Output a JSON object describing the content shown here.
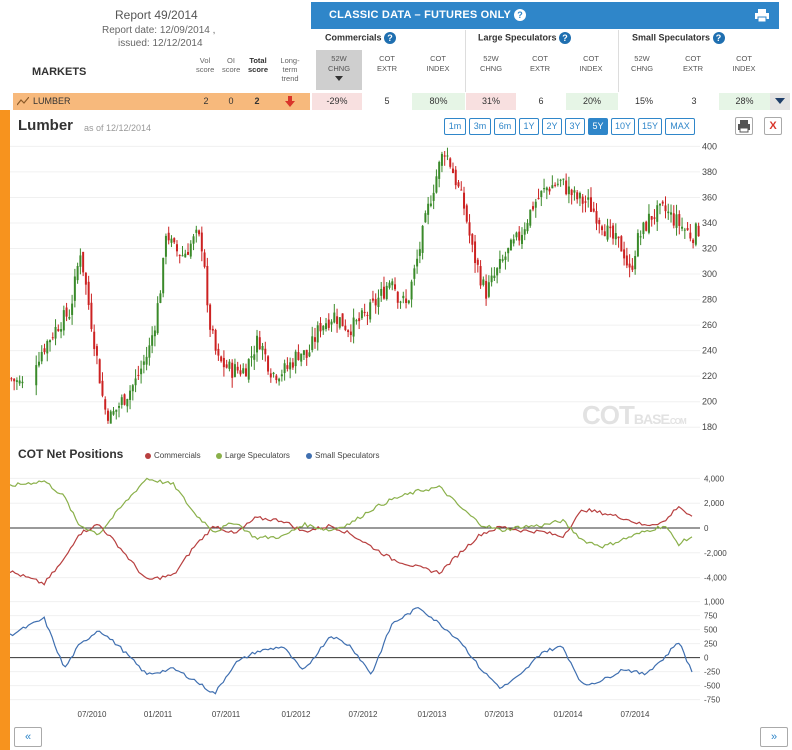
{
  "report": {
    "title": "Report 49/2014",
    "report_date": "Report date: 12/09/2014 ,",
    "issued": "issued: 12/12/2014"
  },
  "markets_label": "MARKETS",
  "score_headers": {
    "vol": "Vol score",
    "oi": "OI score",
    "total": "Total score",
    "trend": "Long-term trend"
  },
  "classic": {
    "title": "CLASSIC DATA – FUTURES ONLY",
    "help": "?"
  },
  "groups": [
    {
      "label": "Commercials"
    },
    {
      "label": "Large Speculators"
    },
    {
      "label": "Small Speculators"
    }
  ],
  "columns": [
    {
      "l1": "52W",
      "l2": "CHNG"
    },
    {
      "l1": "COT",
      "l2": "EXTR"
    },
    {
      "l1": "COT",
      "l2": "INDEX"
    },
    {
      "l1": "52W",
      "l2": "CHNG"
    },
    {
      "l1": "COT",
      "l2": "EXTR"
    },
    {
      "l1": "COT",
      "l2": "INDEX"
    },
    {
      "l1": "52W",
      "l2": "CHNG"
    },
    {
      "l1": "COT",
      "l2": "EXTR"
    },
    {
      "l1": "COT",
      "l2": "INDEX"
    }
  ],
  "market_row": {
    "name": "LUMBER",
    "vol": "2",
    "oi": "0",
    "total": "2",
    "trend_icon": "arrow-down-icon",
    "cells": [
      {
        "v": "-29%",
        "bg": "#f8e0e0"
      },
      {
        "v": "5",
        "bg": "#ffffff"
      },
      {
        "v": "80%",
        "bg": "#e6f5e6"
      },
      {
        "v": "31%",
        "bg": "#f8e0e0"
      },
      {
        "v": "6",
        "bg": "#ffffff"
      },
      {
        "v": "20%",
        "bg": "#e6f5e6"
      },
      {
        "v": "15%",
        "bg": "#ffffff"
      },
      {
        "v": "3",
        "bg": "#ffffff"
      },
      {
        "v": "28%",
        "bg": "#e6f5e6"
      }
    ]
  },
  "chart": {
    "title": "Lumber",
    "asof": "as of 12/12/2014",
    "watermark_a": "COT",
    "watermark_b": "BASE",
    "watermark_c": ".COM",
    "ranges": [
      "1m",
      "3m",
      "6m",
      "1Y",
      "2Y",
      "3Y",
      "5Y",
      "10Y",
      "15Y",
      "MAX"
    ],
    "active_range": "5Y",
    "close": "X"
  },
  "cot": {
    "title": "COT Net Positions",
    "legend": [
      "Commercials",
      "Large Speculators",
      "Small Speculators"
    ]
  },
  "colors": {
    "accent": "#2f86c9",
    "orange": "#f7931e",
    "up": "#3a8a2a",
    "down": "#cc2222",
    "comm": "#b84040",
    "large": "#8ab04a",
    "small": "#3f6fb0"
  },
  "nav": {
    "prev": "«",
    "next": "»"
  },
  "chart_data": [
    {
      "type": "candlestick",
      "title": "Lumber",
      "ylim": [
        170,
        405
      ],
      "y_ticks": [
        "400",
        "380",
        "360",
        "340",
        "320",
        "300",
        "280",
        "260",
        "240",
        "220",
        "200",
        "180"
      ],
      "x_ticks": [
        "07/2010",
        "01/2011",
        "07/2011",
        "01/2012",
        "07/2012",
        "01/2013",
        "07/2013",
        "01/2014",
        "07/2014"
      ],
      "close_path": [
        [
          0,
          218
        ],
        [
          0.02,
          212
        ],
        [
          0.03,
          228
        ],
        [
          0.05,
          245
        ],
        [
          0.07,
          262
        ],
        [
          0.085,
          270
        ],
        [
          0.095,
          300
        ],
        [
          0.1,
          320
        ],
        [
          0.11,
          285
        ],
        [
          0.125,
          232
        ],
        [
          0.135,
          195
        ],
        [
          0.145,
          188
        ],
        [
          0.16,
          200
        ],
        [
          0.18,
          215
        ],
        [
          0.2,
          240
        ],
        [
          0.21,
          265
        ],
        [
          0.22,
          300
        ],
        [
          0.225,
          335
        ],
        [
          0.235,
          320
        ],
        [
          0.25,
          315
        ],
        [
          0.27,
          330
        ],
        [
          0.28,
          320
        ],
        [
          0.285,
          270
        ],
        [
          0.3,
          232
        ],
        [
          0.32,
          225
        ],
        [
          0.34,
          225
        ],
        [
          0.36,
          250
        ],
        [
          0.37,
          235
        ],
        [
          0.38,
          222
        ],
        [
          0.4,
          225
        ],
        [
          0.42,
          240
        ],
        [
          0.43,
          235
        ],
        [
          0.45,
          260
        ],
        [
          0.47,
          268
        ],
        [
          0.49,
          258
        ],
        [
          0.5,
          260
        ],
        [
          0.52,
          270
        ],
        [
          0.54,
          285
        ],
        [
          0.555,
          300
        ],
        [
          0.56,
          285
        ],
        [
          0.575,
          275
        ],
        [
          0.59,
          310
        ],
        [
          0.6,
          335
        ],
        [
          0.61,
          360
        ],
        [
          0.62,
          380
        ],
        [
          0.63,
          398
        ],
        [
          0.64,
          385
        ],
        [
          0.66,
          350
        ],
        [
          0.67,
          320
        ],
        [
          0.69,
          285
        ],
        [
          0.7,
          295
        ],
        [
          0.72,
          315
        ],
        [
          0.74,
          330
        ],
        [
          0.76,
          355
        ],
        [
          0.78,
          368
        ],
        [
          0.8,
          372
        ],
        [
          0.82,
          360
        ],
        [
          0.84,
          355
        ],
        [
          0.86,
          340
        ],
        [
          0.87,
          330
        ],
        [
          0.89,
          320
        ],
        [
          0.9,
          300
        ],
        [
          0.91,
          325
        ],
        [
          0.93,
          345
        ],
        [
          0.95,
          350
        ],
        [
          0.97,
          340
        ],
        [
          0.99,
          330
        ],
        [
          1,
          335
        ]
      ]
    },
    {
      "type": "line",
      "title": "COT Net Positions",
      "ylim": [
        -5000,
        5000
      ],
      "y_ticks": [
        "4,000",
        "2,000",
        "0",
        "-2,000",
        "-4,000"
      ],
      "series": [
        {
          "name": "Commercials",
          "values": [
            [
              0,
              -3500
            ],
            [
              0.05,
              -4500
            ],
            [
              0.08,
              -2500
            ],
            [
              0.1,
              -500
            ],
            [
              0.13,
              300
            ],
            [
              0.16,
              -1500
            ],
            [
              0.2,
              -4200
            ],
            [
              0.24,
              -3800
            ],
            [
              0.27,
              -1500
            ],
            [
              0.3,
              200
            ],
            [
              0.33,
              -500
            ],
            [
              0.36,
              800
            ],
            [
              0.4,
              600
            ],
            [
              0.43,
              -300
            ],
            [
              0.47,
              200
            ],
            [
              0.5,
              -500
            ],
            [
              0.53,
              -1500
            ],
            [
              0.56,
              -2500
            ],
            [
              0.6,
              -3200
            ],
            [
              0.63,
              -3600
            ],
            [
              0.66,
              -2000
            ],
            [
              0.69,
              -500
            ],
            [
              0.72,
              100
            ],
            [
              0.75,
              -200
            ],
            [
              0.78,
              -300
            ],
            [
              0.81,
              -700
            ],
            [
              0.84,
              1500
            ],
            [
              0.87,
              1200
            ],
            [
              0.9,
              800
            ],
            [
              0.93,
              200
            ],
            [
              0.96,
              500
            ],
            [
              0.98,
              1800
            ],
            [
              1,
              800
            ]
          ]
        },
        {
          "name": "Large Speculators",
          "values": [
            [
              0,
              3400
            ],
            [
              0.05,
              3800
            ],
            [
              0.08,
              2500
            ],
            [
              0.1,
              300
            ],
            [
              0.13,
              -500
            ],
            [
              0.16,
              1500
            ],
            [
              0.2,
              4000
            ],
            [
              0.24,
              3500
            ],
            [
              0.27,
              1200
            ],
            [
              0.3,
              -300
            ],
            [
              0.33,
              500
            ],
            [
              0.36,
              -800
            ],
            [
              0.4,
              -700
            ],
            [
              0.43,
              300
            ],
            [
              0.47,
              -200
            ],
            [
              0.5,
              400
            ],
            [
              0.53,
              1500
            ],
            [
              0.56,
              2300
            ],
            [
              0.6,
              3000
            ],
            [
              0.63,
              3300
            ],
            [
              0.66,
              1700
            ],
            [
              0.69,
              300
            ],
            [
              0.72,
              -200
            ],
            [
              0.75,
              100
            ],
            [
              0.78,
              200
            ],
            [
              0.81,
              600
            ],
            [
              0.84,
              -1000
            ],
            [
              0.87,
              -1500
            ],
            [
              0.9,
              -900
            ],
            [
              0.93,
              -300
            ],
            [
              0.96,
              200
            ],
            [
              0.98,
              -1300
            ],
            [
              1,
              -700
            ]
          ]
        },
        {
          "name": "Small Speculators",
          "values": [
            [
              0,
              400
            ],
            [
              0.05,
              700
            ],
            [
              0.08,
              -200
            ],
            [
              0.1,
              200
            ],
            [
              0.13,
              500
            ],
            [
              0.16,
              200
            ],
            [
              0.2,
              -300
            ],
            [
              0.24,
              -200
            ],
            [
              0.27,
              -400
            ],
            [
              0.3,
              -650
            ],
            [
              0.33,
              -100
            ],
            [
              0.36,
              100
            ],
            [
              0.4,
              200
            ],
            [
              0.43,
              -250
            ],
            [
              0.47,
              400
            ],
            [
              0.5,
              200
            ],
            [
              0.53,
              -300
            ],
            [
              0.56,
              600
            ],
            [
              0.6,
              900
            ],
            [
              0.63,
              600
            ],
            [
              0.66,
              300
            ],
            [
              0.69,
              -200
            ],
            [
              0.72,
              -550
            ],
            [
              0.75,
              -300
            ],
            [
              0.78,
              100
            ],
            [
              0.81,
              200
            ],
            [
              0.84,
              -500
            ],
            [
              0.87,
              -400
            ],
            [
              0.9,
              -200
            ],
            [
              0.93,
              -300
            ],
            [
              0.96,
              0
            ],
            [
              0.98,
              300
            ],
            [
              1,
              -250
            ]
          ]
        }
      ]
    }
  ]
}
